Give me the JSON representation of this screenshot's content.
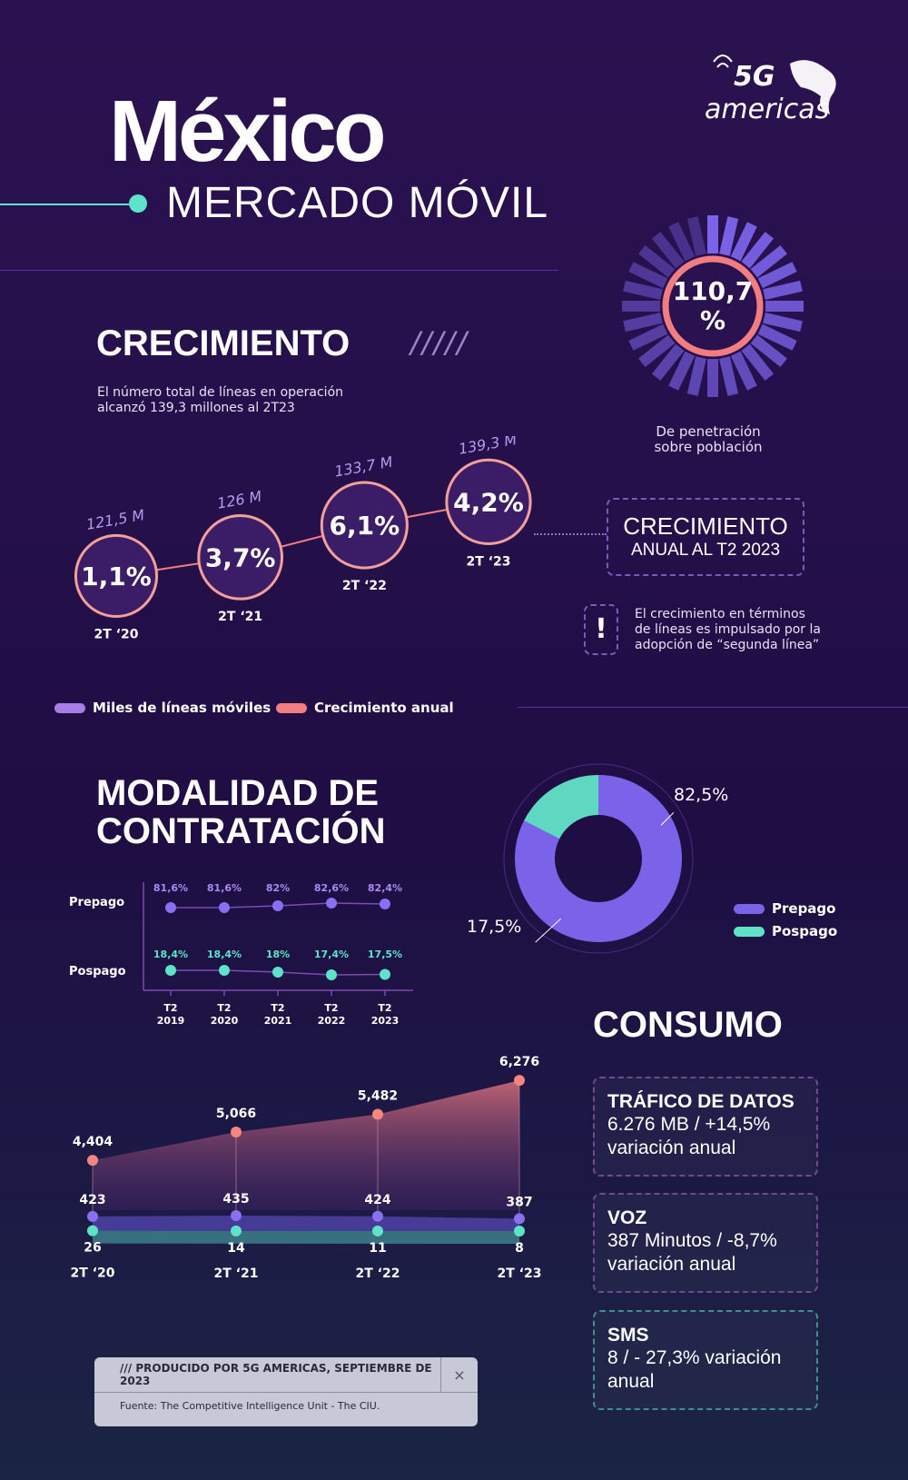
{
  "header": {
    "country": "México",
    "subtitle": "MERCADO MÓVIL",
    "logo_text": "5G americas"
  },
  "penetration": {
    "value_line1": "110,7",
    "value_line2": "%",
    "label_line1": "De penetración",
    "label_line2": "sobre población"
  },
  "growth": {
    "title": "CRECIMIENTO",
    "deco": "/////",
    "description_line1": "El número total de líneas en operación",
    "description_line2": "alcanzó 139,3 millones al 2T23",
    "points": [
      {
        "period": "2T ‘20",
        "lines": "121,5 M",
        "growth": "1,1%"
      },
      {
        "period": "2T ‘21",
        "lines": "126 M",
        "growth": "3,7%"
      },
      {
        "period": "2T ‘22",
        "lines": "133,7 M",
        "growth": "6,1%"
      },
      {
        "period": "2T ‘23",
        "lines": "139,3 M",
        "growth": "4,2%"
      }
    ],
    "box_line1": "CRECIMIENTO",
    "box_line2": "ANUAL AL T2 2023",
    "note_icon": "!",
    "note_line1": "El crecimiento en términos",
    "note_line2": "de líneas es impulsado por la",
    "note_line3": "adopción de “segunda línea”",
    "legend_lines": "Miles de líneas móviles",
    "legend_growth": "Crecimiento anual",
    "colors": {
      "lines": "#a77ee6",
      "growth": "#f27d80"
    }
  },
  "modalidad": {
    "title_line1": "MODALIDAD DE",
    "title_line2": "CONTRATACIÓN",
    "row_prepago": "Prepago",
    "row_pospago": "Pospago",
    "periods": [
      [
        "T2",
        "2019"
      ],
      [
        "T2",
        "2020"
      ],
      [
        "T2",
        "2021"
      ],
      [
        "T2",
        "2022"
      ],
      [
        "T2",
        "2023"
      ]
    ],
    "prepago_labels": [
      "81,6%",
      "81,6%",
      "82%",
      "82,6%",
      "82,4%"
    ],
    "pospago_labels": [
      "18,4%",
      "18,4%",
      "18%",
      "17,4%",
      "17,5%"
    ],
    "donut_prepago_label": "82,5%",
    "donut_pospago_label": "17,5%",
    "legend_prepago": "Prepago",
    "legend_pospago": "Pospago",
    "colors": {
      "prepago": "#7a63e8",
      "pospago": "#5fe3c8"
    }
  },
  "chart_data": [
    {
      "type": "line",
      "title": "CRECIMIENTO",
      "categories": [
        "2T ‘20",
        "2T ‘21",
        "2T ‘22",
        "2T ‘23"
      ],
      "series": [
        {
          "name": "Miles de líneas móviles",
          "values": [
            121.5,
            126,
            133.7,
            139.3
          ]
        },
        {
          "name": "Crecimiento anual",
          "values": [
            1.1,
            3.7,
            6.1,
            4.2
          ]
        }
      ]
    },
    {
      "type": "line",
      "categories": [
        "T2 2019",
        "T2 2020",
        "T2 2021",
        "T2 2022",
        "T2 2023"
      ],
      "series": [
        {
          "name": "Prepago",
          "values": [
            81.6,
            81.6,
            82,
            82.6,
            82.4
          ]
        },
        {
          "name": "Pospago",
          "values": [
            18.4,
            18.4,
            18,
            17.4,
            17.5
          ]
        }
      ]
    },
    {
      "type": "pie",
      "categories": [
        "Prepago",
        "Pospago"
      ],
      "values": [
        82.5,
        17.5
      ]
    },
    {
      "type": "area",
      "categories": [
        "2T ‘20",
        "2T ‘21",
        "2T ‘22",
        "2T ‘23"
      ],
      "series": [
        {
          "values": [
            4404,
            5066,
            5482,
            6276
          ],
          "labels": [
            "4,404",
            "5,066",
            "5,482",
            "6,276"
          ]
        },
        {
          "values": [
            423,
            435,
            424,
            387
          ],
          "labels": [
            "423",
            "435",
            "424",
            "387"
          ]
        },
        {
          "values": [
            26,
            14,
            11,
            8
          ],
          "labels": [
            "26",
            "14",
            "11",
            "8"
          ]
        }
      ]
    }
  ],
  "consumo": {
    "title": "CONSUMO",
    "cards": [
      {
        "title": "TRÁFICO DE DATOS",
        "line1": "6.276 MB / +14,5%",
        "line2": "variación anual"
      },
      {
        "title": "VOZ",
        "line1": "387 Minutos / -8,7%",
        "line2": "variación anual"
      },
      {
        "title": "SMS",
        "line1": "8 / - 27,3% variación",
        "line2": "anual"
      }
    ]
  },
  "footer": {
    "produced": "/// PRODUCIDO POR 5G AMERICAS, SEPTIEMBRE DE 2023",
    "source": "Fuente: The Competitive Intelligence Unit - The CIU.",
    "close": "×"
  }
}
